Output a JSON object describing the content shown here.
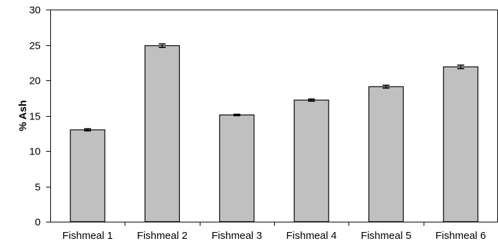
{
  "chart_data": {
    "type": "bar",
    "title": "",
    "xlabel": "",
    "ylabel": "% Ash",
    "categories": [
      "Fishmeal 1",
      "Fishmeal 2",
      "Fishmeal 3",
      "Fishmeal 4",
      "Fishmeal 5",
      "Fishmeal 6"
    ],
    "values": [
      13.0,
      24.9,
      15.1,
      17.2,
      19.1,
      21.9
    ],
    "error": [
      0.15,
      0.25,
      0.1,
      0.15,
      0.2,
      0.25
    ],
    "ylim": [
      0,
      30
    ],
    "yticks": [
      0,
      5,
      10,
      15,
      20,
      25,
      30
    ],
    "grid": false,
    "legend": "none",
    "colors": {
      "bar_fill": "#c0c0c0",
      "bar_stroke": "#000000",
      "axis": "#000000"
    }
  }
}
